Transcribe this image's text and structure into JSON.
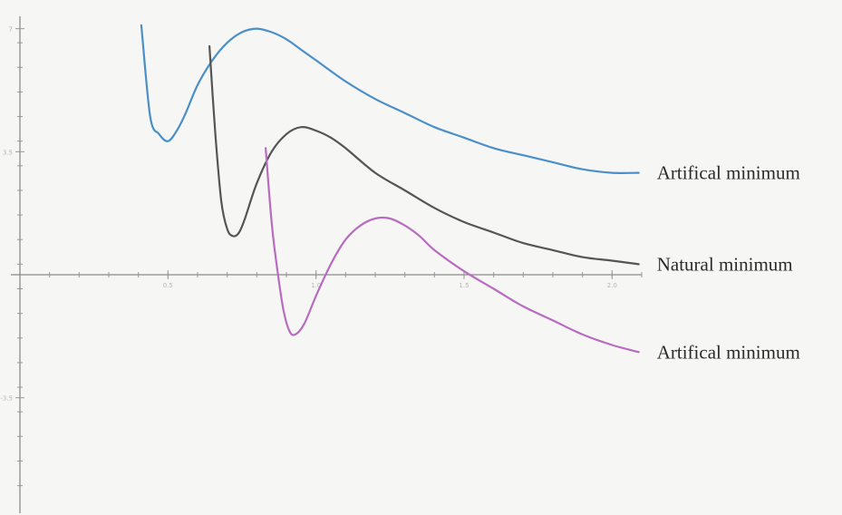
{
  "chart_data": {
    "type": "line",
    "title": "",
    "xlabel": "",
    "ylabel": "",
    "xlim": [
      0,
      2.1
    ],
    "ylim": [
      -6.5,
      7.3
    ],
    "grid": false,
    "x_ticks": [
      {
        "value": 0.5,
        "label": "0.5"
      },
      {
        "value": 1.0,
        "label": "1.0"
      },
      {
        "value": 1.5,
        "label": "1.5"
      },
      {
        "value": 2.0,
        "label": "2.0"
      }
    ],
    "y_ticks": [
      {
        "value": 7,
        "label": "7"
      },
      {
        "value": 3.5,
        "label": "3.5"
      },
      {
        "value": -3.5,
        "label": "-3.5"
      }
    ],
    "series": [
      {
        "name": "Artifical minimum",
        "color": "#4a8fc9",
        "x": [
          0.41,
          0.44,
          0.47,
          0.5,
          0.53,
          0.56,
          0.6,
          0.65,
          0.7,
          0.75,
          0.8,
          0.85,
          0.9,
          0.95,
          1.0,
          1.1,
          1.2,
          1.3,
          1.4,
          1.5,
          1.6,
          1.7,
          1.8,
          1.9,
          2.0,
          2.09
        ],
        "values": [
          7.1,
          4.5,
          4.0,
          3.8,
          4.1,
          4.6,
          5.4,
          6.1,
          6.6,
          6.9,
          7.0,
          6.9,
          6.7,
          6.4,
          6.1,
          5.5,
          5.0,
          4.6,
          4.2,
          3.9,
          3.6,
          3.4,
          3.2,
          3.0,
          2.9,
          2.9
        ]
      },
      {
        "name": "Natural minimum",
        "color": "#555555",
        "x": [
          0.64,
          0.66,
          0.68,
          0.7,
          0.72,
          0.74,
          0.76,
          0.8,
          0.85,
          0.9,
          0.95,
          1.0,
          1.05,
          1.1,
          1.2,
          1.3,
          1.4,
          1.5,
          1.6,
          1.7,
          1.8,
          1.9,
          2.0,
          2.09
        ],
        "values": [
          6.5,
          4.0,
          2.1,
          1.3,
          1.1,
          1.2,
          1.6,
          2.6,
          3.5,
          4.0,
          4.2,
          4.1,
          3.9,
          3.6,
          2.9,
          2.4,
          1.9,
          1.5,
          1.2,
          0.9,
          0.7,
          0.5,
          0.4,
          0.3
        ]
      },
      {
        "name": "Artifical minimum",
        "color": "#b86cc0",
        "x": [
          0.83,
          0.85,
          0.87,
          0.89,
          0.91,
          0.93,
          0.96,
          1.0,
          1.05,
          1.1,
          1.15,
          1.2,
          1.25,
          1.3,
          1.35,
          1.4,
          1.5,
          1.6,
          1.7,
          1.8,
          1.9,
          2.0,
          2.09
        ],
        "values": [
          3.6,
          1.5,
          0.1,
          -1.0,
          -1.6,
          -1.7,
          -1.4,
          -0.6,
          0.3,
          1.0,
          1.4,
          1.6,
          1.6,
          1.4,
          1.1,
          0.7,
          0.1,
          -0.4,
          -0.9,
          -1.3,
          -1.7,
          -2.0,
          -2.2
        ]
      }
    ]
  }
}
